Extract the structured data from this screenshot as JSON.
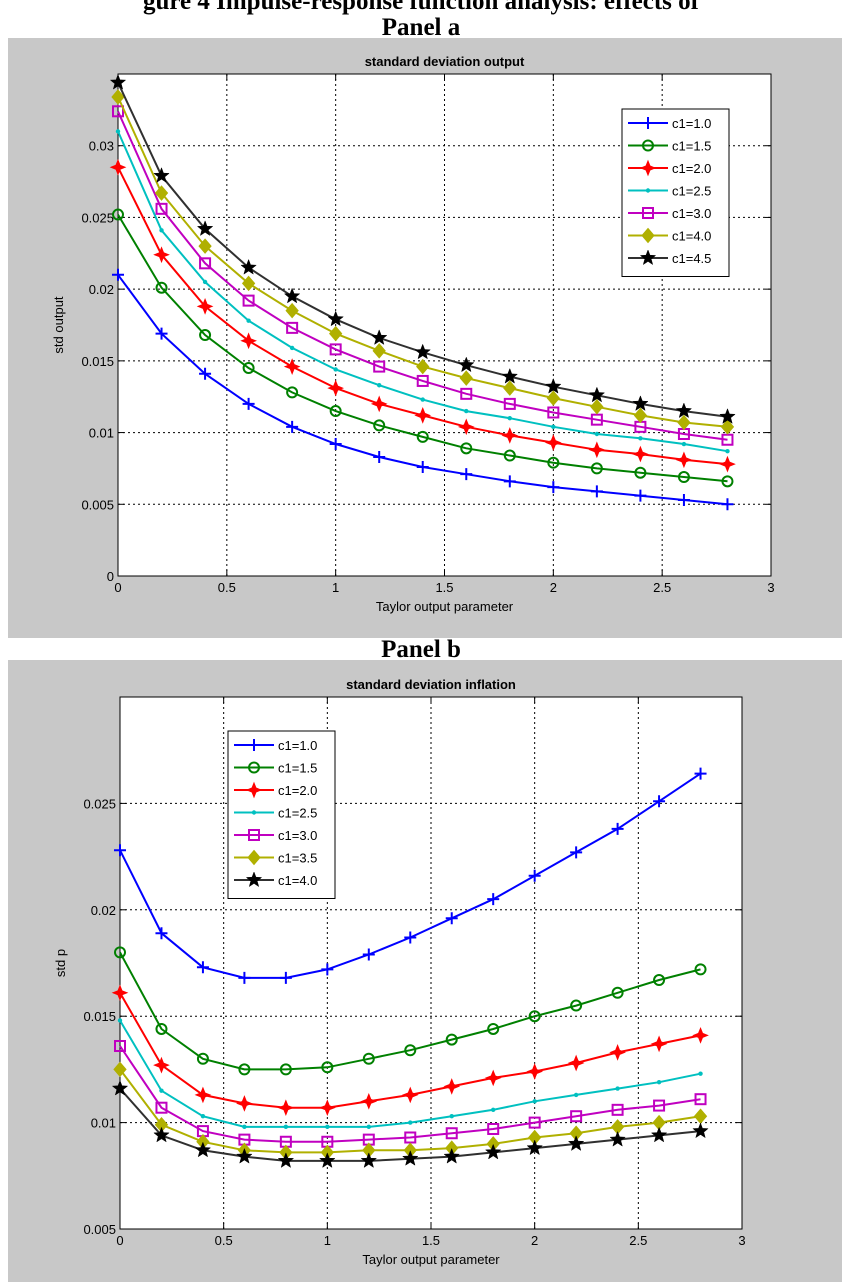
{
  "figure": {
    "title": "gure 4 Impulse-response function analysis: effects of",
    "panels": [
      "Panel a",
      "Panel b"
    ]
  },
  "chart_data": [
    {
      "type": "line",
      "title": "standard deviation output",
      "xlabel": "Taylor output parameter",
      "ylabel": "std output",
      "xlim": [
        0,
        3
      ],
      "ylim": [
        0,
        0.035
      ],
      "xticks": [
        "0",
        "0.5",
        "1",
        "1.5",
        "2",
        "2.5",
        "3"
      ],
      "yticks": [
        "0",
        "0.005",
        "0.01",
        "0.015",
        "0.02",
        "0.025",
        "0.03"
      ],
      "xtick_values": [
        0,
        0.5,
        1,
        1.5,
        2,
        2.5,
        3
      ],
      "ytick_values": [
        0,
        0.005,
        0.01,
        0.015,
        0.02,
        0.025,
        0.03
      ],
      "grid": true,
      "legend": "top-right",
      "x": [
        0,
        0.2,
        0.4,
        0.6,
        0.8,
        1.0,
        1.2,
        1.4,
        1.6,
        1.8,
        2.0,
        2.2,
        2.4,
        2.6,
        2.8
      ],
      "series": [
        {
          "name": "c1=1.0",
          "color": "#0000ff",
          "marker": "plus",
          "values": [
            0.021,
            0.0169,
            0.0141,
            0.012,
            0.0104,
            0.0092,
            0.0083,
            0.0076,
            0.0071,
            0.0066,
            0.0062,
            0.0059,
            0.0056,
            0.0053,
            0.005
          ]
        },
        {
          "name": "c1=1.5",
          "color": "#008000",
          "marker": "circle",
          "values": [
            0.0252,
            0.0201,
            0.0168,
            0.0145,
            0.0128,
            0.0115,
            0.0105,
            0.0097,
            0.0089,
            0.0084,
            0.0079,
            0.0075,
            0.0072,
            0.0069,
            0.0066
          ]
        },
        {
          "name": "c1=2.0",
          "color": "#ff0000",
          "marker": "star4",
          "values": [
            0.0285,
            0.0224,
            0.0188,
            0.0164,
            0.0146,
            0.0131,
            0.012,
            0.0112,
            0.0104,
            0.0098,
            0.0093,
            0.0088,
            0.0085,
            0.0081,
            0.0078
          ]
        },
        {
          "name": "c1=2.5",
          "color": "#00c0c0",
          "marker": "dot",
          "values": [
            0.031,
            0.0241,
            0.0205,
            0.0178,
            0.0159,
            0.0144,
            0.0133,
            0.0123,
            0.0115,
            0.011,
            0.0104,
            0.0099,
            0.0096,
            0.0092,
            0.0087
          ]
        },
        {
          "name": "c1=3.0",
          "color": "#c000c0",
          "marker": "square",
          "values": [
            0.0324,
            0.0256,
            0.0218,
            0.0192,
            0.0173,
            0.0158,
            0.0146,
            0.0136,
            0.0127,
            0.012,
            0.0114,
            0.0109,
            0.0104,
            0.0099,
            0.0095
          ]
        },
        {
          "name": "c1=4.0",
          "color": "#b0b000",
          "marker": "diamond",
          "values": [
            0.0334,
            0.0267,
            0.023,
            0.0204,
            0.0185,
            0.0169,
            0.0157,
            0.0146,
            0.0138,
            0.0131,
            0.0124,
            0.0118,
            0.0112,
            0.0107,
            0.0104
          ]
        },
        {
          "name": "c1=4.5",
          "color": "#303030",
          "marker": "star",
          "values": [
            0.0344,
            0.0279,
            0.0242,
            0.0215,
            0.0195,
            0.0179,
            0.0166,
            0.0156,
            0.0147,
            0.0139,
            0.0132,
            0.0126,
            0.012,
            0.0115,
            0.0111
          ]
        }
      ]
    },
    {
      "type": "line",
      "title": "standard deviation inflation",
      "xlabel": "Taylor output parameter",
      "ylabel": "std p",
      "xlim": [
        0,
        3
      ],
      "ylim": [
        0.005,
        0.03
      ],
      "xticks": [
        "0",
        "0.5",
        "1",
        "1.5",
        "2",
        "2.5",
        "3"
      ],
      "yticks": [
        "0.005",
        "0.01",
        "0.015",
        "0.02",
        "0.025"
      ],
      "xtick_values": [
        0,
        0.5,
        1,
        1.5,
        2,
        2.5,
        3
      ],
      "ytick_values": [
        0.005,
        0.01,
        0.015,
        0.02,
        0.025
      ],
      "grid": true,
      "legend": "top-left",
      "x": [
        0,
        0.2,
        0.4,
        0.6,
        0.8,
        1.0,
        1.2,
        1.4,
        1.6,
        1.8,
        2.0,
        2.2,
        2.4,
        2.6,
        2.8
      ],
      "series": [
        {
          "name": "c1=1.0",
          "color": "#0000ff",
          "marker": "plus",
          "values": [
            0.0228,
            0.0189,
            0.0173,
            0.0168,
            0.0168,
            0.0172,
            0.0179,
            0.0187,
            0.0196,
            0.0205,
            0.0216,
            0.0227,
            0.0238,
            0.0251,
            0.0264
          ]
        },
        {
          "name": "c1=1.5",
          "color": "#008000",
          "marker": "circle",
          "values": [
            0.018,
            0.0144,
            0.013,
            0.0125,
            0.0125,
            0.0126,
            0.013,
            0.0134,
            0.0139,
            0.0144,
            0.015,
            0.0155,
            0.0161,
            0.0167,
            0.0172
          ]
        },
        {
          "name": "c1=2.0",
          "color": "#ff0000",
          "marker": "star4",
          "values": [
            0.0161,
            0.0127,
            0.0113,
            0.0109,
            0.0107,
            0.0107,
            0.011,
            0.0113,
            0.0117,
            0.0121,
            0.0124,
            0.0128,
            0.0133,
            0.0137,
            0.0141
          ]
        },
        {
          "name": "c1=2.5",
          "color": "#00c0c0",
          "marker": "dot",
          "values": [
            0.0148,
            0.0115,
            0.0103,
            0.0098,
            0.0098,
            0.0098,
            0.0098,
            0.01,
            0.0103,
            0.0106,
            0.011,
            0.0113,
            0.0116,
            0.0119,
            0.0123
          ]
        },
        {
          "name": "c1=3.0",
          "color": "#c000c0",
          "marker": "square",
          "values": [
            0.0136,
            0.0107,
            0.0096,
            0.0092,
            0.0091,
            0.0091,
            0.0092,
            0.0093,
            0.0095,
            0.0097,
            0.01,
            0.0103,
            0.0106,
            0.0108,
            0.0111
          ]
        },
        {
          "name": "c1=3.5",
          "color": "#b0b000",
          "marker": "diamond",
          "values": [
            0.0125,
            0.0099,
            0.0091,
            0.0087,
            0.0086,
            0.0086,
            0.0087,
            0.0087,
            0.0088,
            0.009,
            0.0093,
            0.0095,
            0.0098,
            0.01,
            0.0103
          ]
        },
        {
          "name": "c1=4.0",
          "color": "#303030",
          "marker": "star",
          "values": [
            0.0116,
            0.0094,
            0.0087,
            0.0084,
            0.0082,
            0.0082,
            0.0082,
            0.0083,
            0.0084,
            0.0086,
            0.0088,
            0.009,
            0.0092,
            0.0094,
            0.0096
          ]
        }
      ]
    }
  ]
}
